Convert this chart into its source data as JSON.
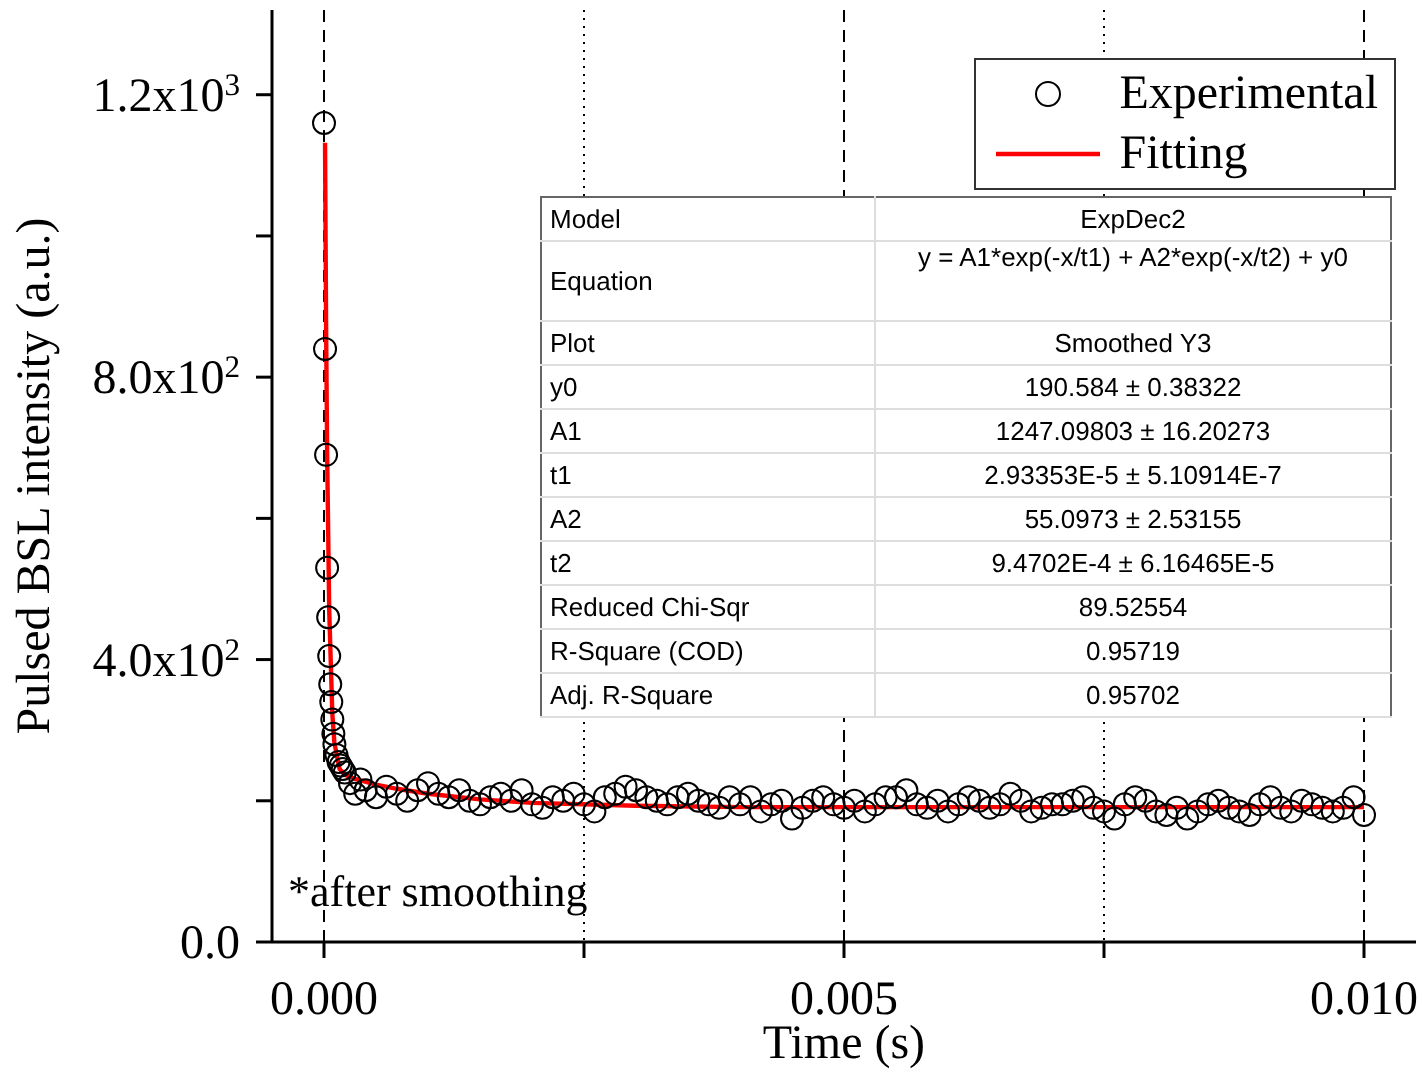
{
  "chart_data": {
    "type": "scatter",
    "xlabel": "Time (s)",
    "ylabel": "Pulsed BSL intensity (a.u.)",
    "xlim": [
      -0.0005,
      0.0105
    ],
    "xticks": [
      {
        "value": 0,
        "label": "0.000"
      },
      {
        "value": 0.0025,
        "label": null
      },
      {
        "value": 0.005,
        "label": "0.005"
      },
      {
        "value": 0.0075,
        "label": null
      },
      {
        "value": 0.01,
        "label": "0.010"
      }
    ],
    "ylim": [
      0,
      1320
    ],
    "yticks": [
      {
        "value": 0,
        "label": "0.0"
      },
      {
        "value": 200,
        "label": null
      },
      {
        "value": 400,
        "label": "4.0x10$^{2}$"
      },
      {
        "value": 600,
        "label": null
      },
      {
        "value": 800,
        "label": "8.0x10$^{2}$"
      },
      {
        "value": 1000,
        "label": null
      },
      {
        "value": 1200,
        "label": "1.2x10$^{3}$"
      }
    ],
    "grid": "x",
    "legend": "top right",
    "series": [
      {
        "name": "Experimental",
        "marker": "circle",
        "color": "#000000",
        "x": [
          0,
          1e-05,
          2e-05,
          3e-05,
          4e-05,
          5e-05,
          6e-05,
          7e-05,
          8e-05,
          9e-05,
          0.0001,
          0.00012,
          0.00014,
          0.00016,
          0.00018,
          0.0002,
          0.00025,
          0.0003,
          0.00035,
          0.0004,
          0.0005,
          0.0006,
          0.0007,
          0.0008,
          0.0009,
          0.001,
          0.0011,
          0.0012,
          0.0013,
          0.0014,
          0.0015,
          0.0016,
          0.0017,
          0.0018,
          0.0019,
          0.002,
          0.0021,
          0.0022,
          0.0023,
          0.0024,
          0.0025,
          0.0026,
          0.0027,
          0.0028,
          0.0029,
          0.003,
          0.0031,
          0.0032,
          0.0033,
          0.0034,
          0.0035,
          0.0036,
          0.0037,
          0.0038,
          0.0039,
          0.004,
          0.0041,
          0.0042,
          0.0043,
          0.0044,
          0.0045,
          0.0046,
          0.0047,
          0.0048,
          0.0049,
          0.005,
          0.0051,
          0.0052,
          0.0053,
          0.0054,
          0.0055,
          0.0056,
          0.0057,
          0.0058,
          0.0059,
          0.006,
          0.0061,
          0.0062,
          0.0063,
          0.0064,
          0.0065,
          0.0066,
          0.0067,
          0.0068,
          0.0069,
          0.007,
          0.0071,
          0.0072,
          0.0073,
          0.0074,
          0.0075,
          0.0076,
          0.0077,
          0.0078,
          0.0079,
          0.008,
          0.0081,
          0.0082,
          0.0083,
          0.0084,
          0.0085,
          0.0086,
          0.0087,
          0.0088,
          0.0089,
          0.009,
          0.0091,
          0.0092,
          0.0093,
          0.0094,
          0.0095,
          0.0096,
          0.0097,
          0.0098,
          0.0099,
          0.01
        ],
        "values": [
          1160,
          840,
          690,
          530,
          460,
          405,
          365,
          340,
          315,
          295,
          280,
          265,
          255,
          250,
          245,
          240,
          225,
          210,
          230,
          215,
          205,
          220,
          210,
          200,
          215,
          225,
          210,
          205,
          215,
          200,
          195,
          205,
          210,
          200,
          215,
          195,
          190,
          205,
          200,
          210,
          195,
          185,
          205,
          210,
          220,
          215,
          205,
          200,
          195,
          205,
          210,
          200,
          195,
          190,
          205,
          195,
          205,
          185,
          195,
          200,
          175,
          190,
          200,
          205,
          195,
          190,
          200,
          185,
          195,
          205,
          205,
          215,
          195,
          190,
          200,
          185,
          195,
          205,
          200,
          190,
          195,
          210,
          200,
          185,
          190,
          195,
          195,
          200,
          205,
          190,
          185,
          175,
          195,
          205,
          200,
          185,
          180,
          190,
          175,
          185,
          195,
          200,
          190,
          185,
          180,
          195,
          205,
          190,
          185,
          200,
          195,
          190,
          185,
          190,
          205,
          180
        ]
      },
      {
        "name": "Fitting",
        "type": "line",
        "marker": "none",
        "line_style": "solid",
        "color": "#ff0000",
        "x": [
          1e-05,
          2e-05,
          3e-05,
          5e-05,
          8e-05,
          0.0001,
          0.00015,
          0.0002,
          0.0003,
          0.0005,
          0.0007,
          0.001,
          0.0015,
          0.002,
          0.003,
          0.004,
          0.006,
          0.008,
          0.01
        ],
        "values": [
          1132,
          877,
          694,
          471,
          323,
          282,
          245,
          237,
          231,
          223,
          217,
          210,
          202,
          197,
          193,
          191,
          191,
          191,
          191
        ]
      }
    ],
    "annotations": [
      "*after smoothing",
      "Model",
      "ExpDec2",
      "Equation",
      "y = A1*exp(-x/t1) + A2*exp(-x/t2) + y0",
      "Plot",
      "Smoothed Y3",
      "y0",
      "190.584 ± 0.38322",
      "A1",
      "1247.09803 ± 16.20273",
      "t1",
      "2.93353E-5 ± 5.10914E-7",
      "A2",
      "55.0973 ± 2.53155",
      "t2",
      "9.4702E-4 ± 6.16465E-5",
      "Reduced Chi-Sqr",
      "89.52554",
      "R-Square (COD)",
      "0.95719",
      "Adj. R-Square",
      "0.95702"
    ]
  }
}
